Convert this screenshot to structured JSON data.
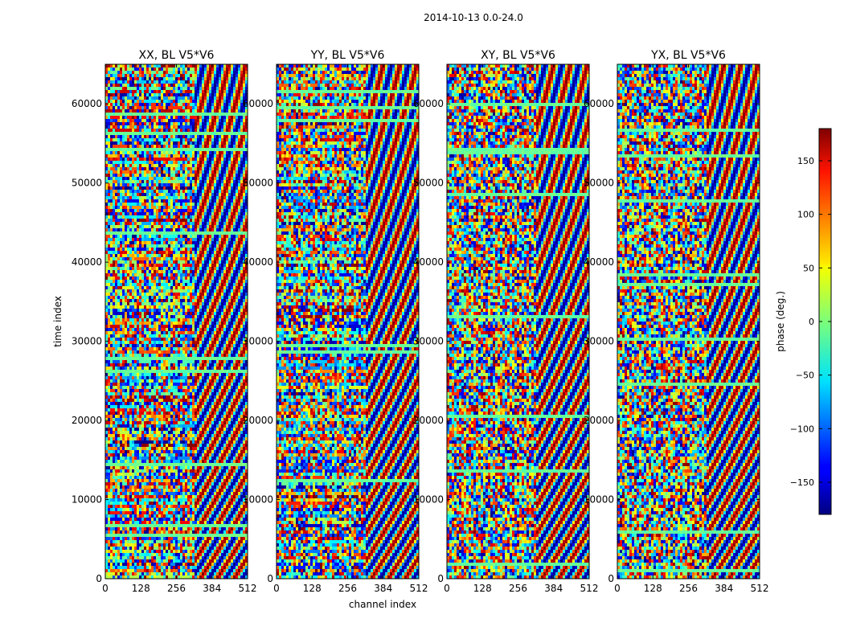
{
  "figure": {
    "suptitle": "2014-10-13 0.0-24.0",
    "xlabel": "channel index",
    "ylabel": "time index"
  },
  "colormap": "jet",
  "chart_data": {
    "type": "heatmap",
    "panels": [
      {
        "title": "XX, BL V5*V6"
      },
      {
        "title": "YY, BL V5*V6"
      },
      {
        "title": "XY, BL V5*V6"
      },
      {
        "title": "YX, BL V5*V6"
      }
    ],
    "x_ticks": [
      "0",
      "128",
      "256",
      "384",
      "512"
    ],
    "x_tick_values": [
      0,
      128,
      256,
      384,
      512
    ],
    "y_ticks": [
      "0",
      "10000",
      "20000",
      "30000",
      "40000",
      "50000",
      "60000"
    ],
    "y_tick_values": [
      0,
      10000,
      20000,
      30000,
      40000,
      50000,
      60000
    ],
    "xlim": [
      0,
      512
    ],
    "ylim": [
      0,
      65000
    ],
    "colorbar": {
      "label": "phase (deg.)",
      "ticks": [
        "150",
        "100",
        "50",
        "0",
        "−50",
        "−100",
        "−150"
      ],
      "tick_values": [
        150,
        100,
        50,
        0,
        -50,
        -100,
        -150
      ],
      "range": [
        -180,
        180
      ]
    }
  }
}
